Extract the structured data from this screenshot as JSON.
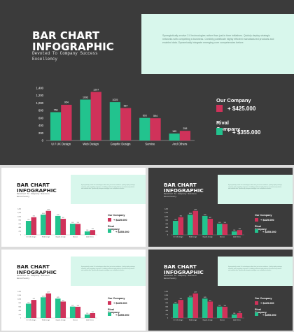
{
  "slide": {
    "title": "BAR CHART INFOGRAPHIC",
    "subtitle": "Devoted To Company Success Excellency",
    "description": "Synergistically evolve 2.0 technologies rather than just in time initiatives. Quickly deploy strategic networks with compelling e-business. Credibly pontificate highly efficient manufactured products and enabled data. Dynamically integrate emerging core competencies before.",
    "legend": [
      {
        "name": "Our Company",
        "value": "+ $425.000"
      },
      {
        "name": "Rival Company",
        "value": "+ $355.000"
      }
    ]
  },
  "colors": {
    "series_a": "#22c38e",
    "series_b": "#d0325a",
    "panel": "#d8f7ec",
    "dark_bg": "#3b3b3b",
    "light_bg": "#ffffff"
  },
  "chart_data": {
    "type": "bar",
    "categories": [
      "UI / UX Design",
      "Web Design",
      "Graphic Design",
      "Service",
      "And Others"
    ],
    "series": [
      {
        "values": [
          756,
          1093,
          1025,
          603,
          185
        ]
      },
      {
        "values": [
          954,
          1297,
          867,
          594,
          258
        ]
      }
    ],
    "ylim": [
      0,
      1400
    ],
    "yticks": [
      0,
      200,
      400,
      600,
      800,
      1000,
      1200,
      1400
    ],
    "grid": false
  }
}
